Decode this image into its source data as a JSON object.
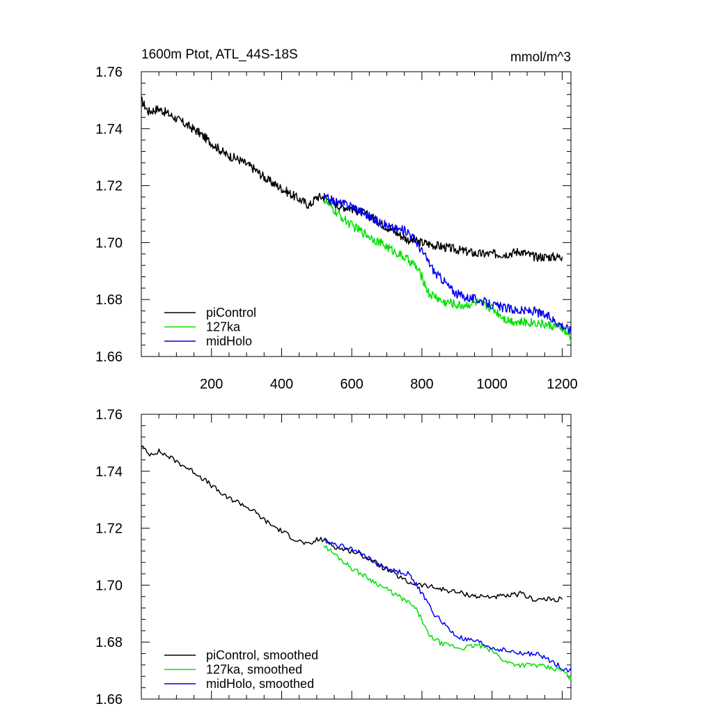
{
  "chart_data": [
    {
      "type": "line",
      "title_left": "1600m Ptot, ATL_44S-18S",
      "title_right": "mmol/m^3",
      "xlabel": "",
      "ylabel": "",
      "xlim": [
        0,
        1225
      ],
      "ylim": [
        1.66,
        1.76
      ],
      "xticks": [
        200,
        400,
        600,
        800,
        1000,
        1200
      ],
      "xtick_labels": [
        "200",
        "400",
        "600",
        "800",
        "1000",
        "1200"
      ],
      "yticks": [
        1.66,
        1.68,
        1.7,
        1.72,
        1.74,
        1.76
      ],
      "ytick_labels": [
        "1.66",
        "1.68",
        "1.70",
        "1.72",
        "1.74",
        "1.76"
      ],
      "legend_position": "bottom-left",
      "series": [
        {
          "name": "piControl",
          "color": "#000000",
          "x": [
            0,
            20,
            50,
            80,
            120,
            160,
            200,
            240,
            280,
            320,
            360,
            400,
            440,
            480,
            500,
            520,
            560,
            600,
            640,
            680,
            720,
            760,
            800,
            840,
            880,
            920,
            960,
            1000,
            1040,
            1080,
            1120,
            1160,
            1200
          ],
          "values": [
            1.75,
            1.746,
            1.747,
            1.745,
            1.742,
            1.739,
            1.735,
            1.731,
            1.729,
            1.726,
            1.722,
            1.719,
            1.716,
            1.713,
            1.716,
            1.716,
            1.713,
            1.712,
            1.71,
            1.707,
            1.704,
            1.701,
            1.7,
            1.699,
            1.698,
            1.697,
            1.696,
            1.696,
            1.696,
            1.697,
            1.695,
            1.695,
            1.695
          ]
        },
        {
          "name": "127ka",
          "color": "#00e000",
          "x": [
            520,
            560,
            600,
            640,
            680,
            720,
            760,
            780,
            800,
            820,
            840,
            860,
            880,
            900,
            920,
            960,
            1000,
            1040,
            1080,
            1120,
            1160,
            1200,
            1225
          ],
          "values": [
            1.715,
            1.71,
            1.706,
            1.703,
            1.7,
            1.697,
            1.694,
            1.692,
            1.688,
            1.682,
            1.681,
            1.679,
            1.679,
            1.678,
            1.678,
            1.679,
            1.677,
            1.673,
            1.672,
            1.672,
            1.671,
            1.67,
            1.666
          ]
        },
        {
          "name": "midHolo",
          "color": "#0000ee",
          "x": [
            520,
            560,
            600,
            640,
            680,
            720,
            760,
            780,
            800,
            820,
            840,
            860,
            880,
            900,
            920,
            960,
            1000,
            1040,
            1080,
            1120,
            1160,
            1200,
            1225
          ],
          "values": [
            1.716,
            1.714,
            1.713,
            1.71,
            1.707,
            1.705,
            1.704,
            1.701,
            1.697,
            1.693,
            1.689,
            1.687,
            1.684,
            1.682,
            1.681,
            1.68,
            1.678,
            1.677,
            1.676,
            1.676,
            1.674,
            1.671,
            1.669
          ]
        }
      ]
    },
    {
      "type": "line",
      "xlabel": "",
      "ylabel": "",
      "xlim": [
        0,
        1225
      ],
      "ylim": [
        1.66,
        1.76
      ],
      "xticks": [
        200,
        400,
        600,
        800,
        1000,
        1200
      ],
      "yticks": [
        1.66,
        1.68,
        1.7,
        1.72,
        1.74,
        1.76
      ],
      "ytick_labels": [
        "1.66",
        "1.68",
        "1.70",
        "1.72",
        "1.74",
        "1.76"
      ],
      "legend_position": "bottom-left",
      "series": [
        {
          "name": "piControl, smoothed",
          "color": "#000000",
          "x": [
            0,
            20,
            50,
            80,
            120,
            160,
            200,
            240,
            280,
            320,
            360,
            400,
            440,
            480,
            500,
            520,
            560,
            600,
            640,
            680,
            720,
            760,
            800,
            840,
            880,
            920,
            960,
            1000,
            1040,
            1080,
            1120,
            1160,
            1200
          ],
          "values": [
            1.749,
            1.746,
            1.747,
            1.745,
            1.742,
            1.739,
            1.735,
            1.731,
            1.729,
            1.726,
            1.722,
            1.719,
            1.716,
            1.714,
            1.716,
            1.716,
            1.713,
            1.712,
            1.71,
            1.707,
            1.704,
            1.701,
            1.7,
            1.699,
            1.698,
            1.697,
            1.696,
            1.696,
            1.696,
            1.697,
            1.695,
            1.695,
            1.695
          ]
        },
        {
          "name": "127ka, smoothed",
          "color": "#00e000",
          "x": [
            520,
            560,
            600,
            640,
            680,
            720,
            760,
            780,
            800,
            820,
            840,
            860,
            880,
            900,
            920,
            960,
            1000,
            1040,
            1080,
            1120,
            1160,
            1200,
            1225
          ],
          "values": [
            1.714,
            1.71,
            1.706,
            1.703,
            1.7,
            1.697,
            1.694,
            1.692,
            1.688,
            1.682,
            1.681,
            1.679,
            1.679,
            1.678,
            1.678,
            1.679,
            1.677,
            1.673,
            1.672,
            1.672,
            1.671,
            1.67,
            1.667
          ]
        },
        {
          "name": "midHolo, smoothed",
          "color": "#0000ee",
          "x": [
            520,
            560,
            600,
            640,
            680,
            720,
            760,
            780,
            800,
            820,
            840,
            860,
            880,
            900,
            920,
            960,
            1000,
            1040,
            1080,
            1120,
            1160,
            1200,
            1225
          ],
          "values": [
            1.716,
            1.714,
            1.713,
            1.71,
            1.707,
            1.705,
            1.704,
            1.701,
            1.697,
            1.693,
            1.689,
            1.687,
            1.684,
            1.682,
            1.681,
            1.68,
            1.678,
            1.677,
            1.676,
            1.676,
            1.674,
            1.671,
            1.67
          ]
        }
      ]
    }
  ]
}
